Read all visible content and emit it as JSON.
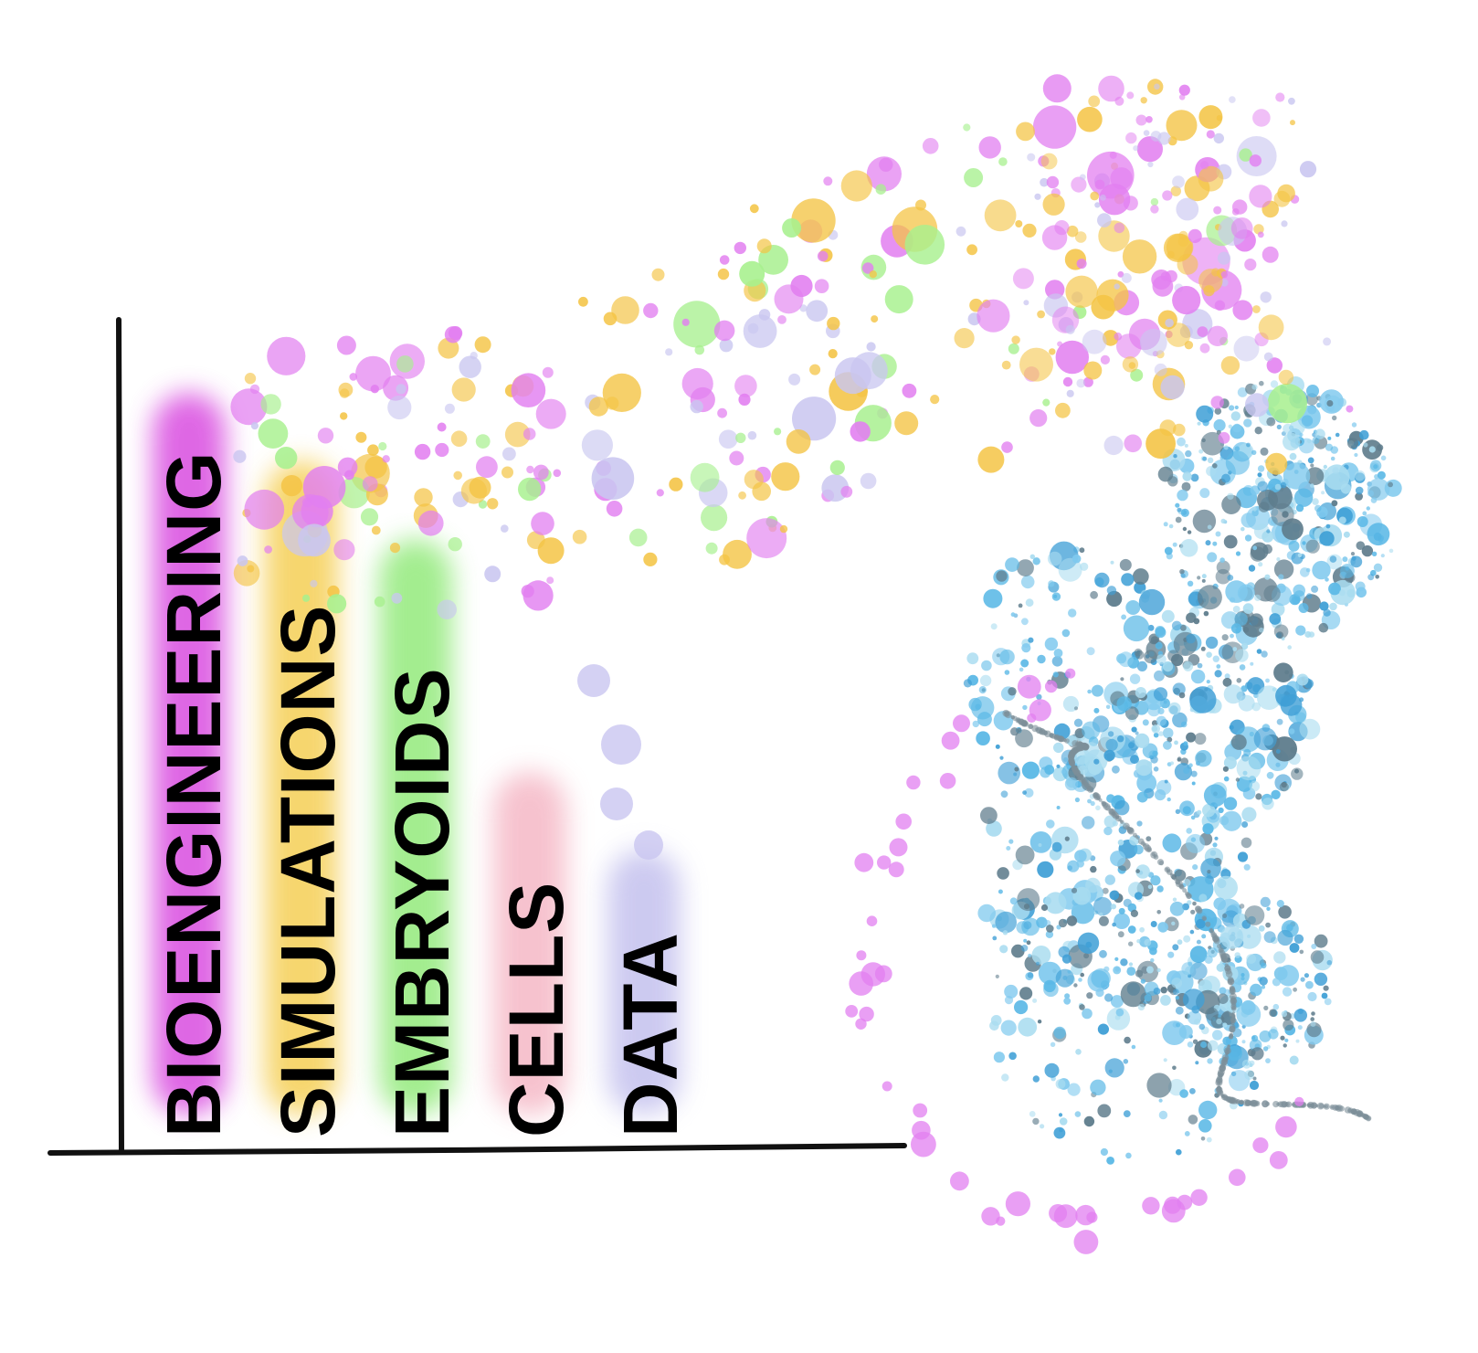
{
  "labels": [
    {
      "text": "BIOENGINEERING",
      "color": "#d94de0"
    },
    {
      "text": "SIMULATIONS",
      "color": "#f2c23e"
    },
    {
      "text": "EMBRYOIDS",
      "color": "#7fe36a"
    },
    {
      "text": "CELLS",
      "color": "#f2a7b8"
    },
    {
      "text": "DATA",
      "color": "#b9b6ea"
    }
  ],
  "palette": {
    "magenta": "#e27ff0",
    "yellow": "#f4c445",
    "green": "#a7f08e",
    "lavender": "#c9c6f0",
    "sky": "#5ab8e6",
    "lightsky": "#a9dcf0",
    "slate": "#5e7c8c"
  }
}
